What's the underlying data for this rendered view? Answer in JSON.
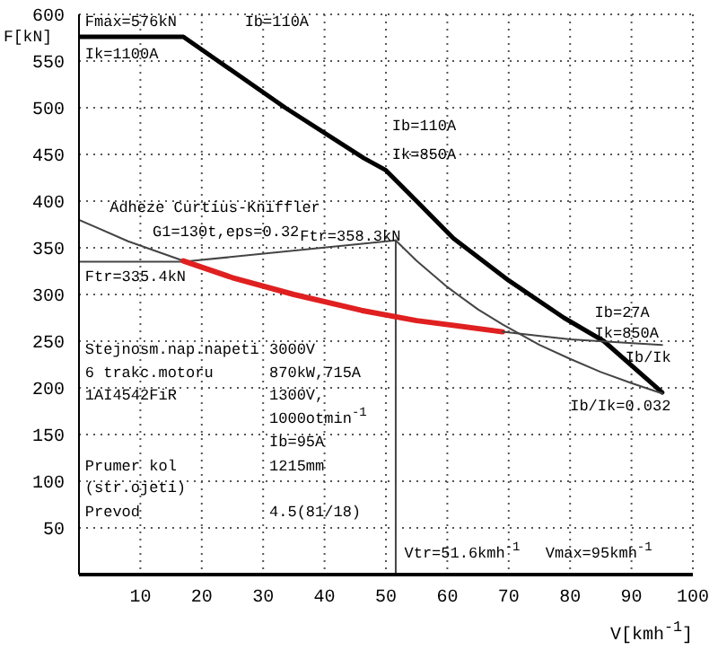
{
  "chart_data": {
    "type": "line",
    "xlabel": "V[kmh$^{-1}$]",
    "ylabel": "F[kN]",
    "xlim": [
      0,
      100
    ],
    "ylim": [
      0,
      600
    ],
    "xticks": [
      10,
      20,
      30,
      40,
      50,
      60,
      70,
      80,
      90,
      100
    ],
    "yticks": [
      50,
      100,
      150,
      200,
      250,
      300,
      350,
      400,
      450,
      500,
      550,
      600
    ],
    "grid": true,
    "legend": false,
    "marker": "none",
    "line_style": "solid",
    "series": [
      {
        "type": "line",
        "color": "#000000",
        "x": [
          0,
          17,
          33.6,
          46.4,
          50,
          55,
          61,
          70,
          79,
          85.5,
          95
        ],
        "values": [
          576,
          576,
          500,
          446,
          433,
          400,
          360,
          315,
          275,
          250,
          195
        ]
      },
      {
        "type": "line",
        "color": "#444444",
        "x": [
          0,
          17,
          51.6
        ],
        "values": [
          335,
          335,
          358
        ]
      },
      {
        "type": "line",
        "color": "#444444",
        "x": [
          51.6,
          51.6
        ],
        "values": [
          0,
          358
        ]
      },
      {
        "type": "line",
        "color": "#444444",
        "x": [
          51.6,
          55,
          60,
          65,
          69,
          75,
          80,
          85,
          90,
          95
        ],
        "values": [
          358,
          336,
          308,
          284,
          268,
          246,
          231,
          217,
          205,
          194
        ]
      },
      {
        "type": "line",
        "color": "#444444",
        "x": [
          0,
          8,
          17
        ],
        "values": [
          380,
          357,
          336
        ]
      },
      {
        "type": "line",
        "color": "#e02020",
        "x": [
          17,
          25,
          35,
          46,
          55,
          69
        ],
        "values": [
          336,
          318,
          300,
          283,
          272,
          260
        ]
      },
      {
        "type": "line",
        "color": "#444444",
        "x": [
          69,
          80,
          95
        ],
        "values": [
          260,
          252,
          246
        ]
      }
    ],
    "annotations": [
      "Fmax=576kN",
      "Ib=110A",
      "Ik=1100A",
      "Ib=110A",
      "Ik=850A",
      "Adheze Curtius-Kniffler",
      "G1=130t,eps=0.32",
      "Ftr=358.3kN",
      "Ftr=335.4kN",
      "Ib/Ik",
      "Stejnosm.nap.napeti",
      "3000V",
      "6 trakc.motoru",
      "870kW,715A",
      "1AI4542FiR",
      "1300V,",
      "1000otmin$^{-1}$",
      "Ib=95A",
      "Prumer kol",
      "1215mm",
      "(str.ojeti)",
      "Prevod",
      "4.5(81/18)",
      "Vmax=95kmh$^{-1}$",
      "Ib=27A",
      {
        "text": "Ik=850A",
        "x": 84,
        "y": 258
      },
      "Ib/Ik=0.032",
      {
        "text": "Vtr=51.6kmh$^{-1}$",
        "x": 53,
        "y": 22
      }
    ]
  }
}
